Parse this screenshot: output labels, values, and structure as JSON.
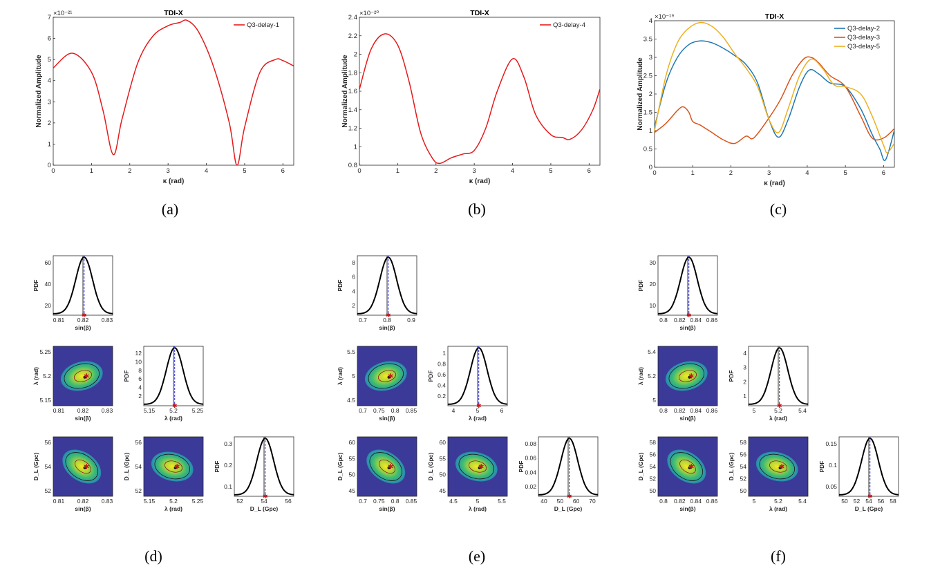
{
  "chart_data": [
    {
      "id": "a",
      "type": "line",
      "title": "TDI-X",
      "xlabel": "κ (rad)",
      "ylabel": "Normalized Amplitude",
      "exponent_label": "×10⁻²¹",
      "xlim": [
        0,
        6.2832
      ],
      "ylim": [
        0,
        7
      ],
      "xticks": [
        "0",
        "1",
        "2",
        "3",
        "4",
        "5",
        "6"
      ],
      "yticks": [
        "0",
        "1",
        "2",
        "3",
        "4",
        "5",
        "6",
        "7"
      ],
      "legend_position": "top-right",
      "series": [
        {
          "name": "Q3-delay-1",
          "color": "#e41a1c",
          "x": [
            0,
            0.5,
            1.0,
            1.3,
            1.57,
            1.8,
            2.2,
            2.6,
            3.0,
            3.3,
            3.5,
            3.8,
            4.2,
            4.6,
            4.8,
            5.0,
            5.4,
            5.8,
            6.0,
            6.28
          ],
          "y": [
            4.6,
            5.3,
            4.4,
            2.6,
            0.5,
            2.2,
            4.8,
            6.1,
            6.6,
            6.75,
            6.85,
            6.3,
            4.6,
            2.0,
            0.0,
            1.8,
            4.4,
            5.0,
            4.95,
            4.7
          ]
        }
      ]
    },
    {
      "id": "b",
      "type": "line",
      "title": "TDI-X",
      "xlabel": "κ (rad)",
      "ylabel": "Normalized Amplitude",
      "exponent_label": "×10⁻²⁰",
      "xlim": [
        0,
        6.2832
      ],
      "ylim": [
        0.8,
        2.4
      ],
      "xticks": [
        "0",
        "1",
        "2",
        "3",
        "4",
        "5",
        "6"
      ],
      "yticks": [
        "0.8",
        "1",
        "1.2",
        "1.4",
        "1.6",
        "1.8",
        "2",
        "2.2",
        "2.4"
      ],
      "legend_position": "top-right",
      "series": [
        {
          "name": "Q3-delay-4",
          "color": "#e41a1c",
          "x": [
            0,
            0.3,
            0.65,
            1.0,
            1.3,
            1.6,
            1.9,
            2.1,
            2.4,
            2.7,
            3.0,
            3.3,
            3.6,
            4.0,
            4.3,
            4.6,
            5.0,
            5.3,
            5.5,
            5.8,
            6.1,
            6.28
          ],
          "y": [
            1.62,
            2.05,
            2.22,
            2.1,
            1.7,
            1.15,
            0.88,
            0.82,
            0.88,
            0.92,
            0.96,
            1.2,
            1.6,
            1.95,
            1.75,
            1.35,
            1.13,
            1.1,
            1.08,
            1.18,
            1.4,
            1.62
          ]
        }
      ]
    },
    {
      "id": "c",
      "type": "line",
      "title": "TDI-X",
      "xlabel": "κ (rad)",
      "ylabel": "Normalized Amplitude",
      "exponent_label": "×10⁻¹⁹",
      "xlim": [
        0,
        6.2832
      ],
      "ylim": [
        0,
        4
      ],
      "xticks": [
        "0",
        "1",
        "2",
        "3",
        "4",
        "5",
        "6"
      ],
      "yticks": [
        "0",
        "0.5",
        "1",
        "1.5",
        "2",
        "2.5",
        "3",
        "3.5",
        "4"
      ],
      "legend_position": "top-right",
      "series": [
        {
          "name": "Q3-delay-2",
          "color": "#1f77b4",
          "x": [
            0,
            0.3,
            0.6,
            0.9,
            1.2,
            1.5,
            1.8,
            2.1,
            2.4,
            2.7,
            3.0,
            3.25,
            3.5,
            3.8,
            4.05,
            4.3,
            4.6,
            5.0,
            5.4,
            5.7,
            5.9,
            6.05,
            6.28
          ],
          "y": [
            1.1,
            2.3,
            3.0,
            3.35,
            3.45,
            3.4,
            3.25,
            3.05,
            2.8,
            2.3,
            1.3,
            0.82,
            1.3,
            2.2,
            2.65,
            2.55,
            2.3,
            2.2,
            1.6,
            0.9,
            0.5,
            0.2,
            1.0
          ]
        },
        {
          "name": "Q3-delay-3",
          "color": "#d95319",
          "x": [
            0,
            0.3,
            0.6,
            0.75,
            0.9,
            1.0,
            1.2,
            1.5,
            1.8,
            2.1,
            2.4,
            2.6,
            3.0,
            3.3,
            3.6,
            3.9,
            4.1,
            4.3,
            4.6,
            5.0,
            5.4,
            5.7,
            6.0,
            6.28
          ],
          "y": [
            0.95,
            1.2,
            1.55,
            1.65,
            1.5,
            1.25,
            1.15,
            0.95,
            0.75,
            0.65,
            0.85,
            0.8,
            1.35,
            1.85,
            2.5,
            2.95,
            3.0,
            2.85,
            2.5,
            2.2,
            1.4,
            0.8,
            0.8,
            1.05
          ]
        },
        {
          "name": "Q3-delay-5",
          "color": "#edb120",
          "x": [
            0,
            0.3,
            0.6,
            0.9,
            1.2,
            1.5,
            1.8,
            2.1,
            2.4,
            2.7,
            3.0,
            3.25,
            3.5,
            3.8,
            4.1,
            4.4,
            4.7,
            5.0,
            5.4,
            5.7,
            6.0,
            6.1,
            6.28
          ],
          "y": [
            1.0,
            2.5,
            3.4,
            3.8,
            3.95,
            3.85,
            3.55,
            3.1,
            2.7,
            2.2,
            1.3,
            0.95,
            1.6,
            2.5,
            2.95,
            2.7,
            2.25,
            2.2,
            2.0,
            1.4,
            0.6,
            0.4,
            0.65
          ]
        }
      ]
    }
  ],
  "corner_plots": [
    {
      "id": "d",
      "pdf_ylabel": "PDF",
      "param_labels": [
        "sin(β)",
        "λ (rad)",
        "D_L (Gpc)"
      ],
      "ticks": [
        [
          "0.81",
          "0.82",
          "0.83"
        ],
        [
          "5.15",
          "5.2",
          "5.25"
        ],
        [
          "52",
          "54",
          "56"
        ]
      ],
      "pdf_yticks": [
        [
          "20",
          "40",
          "60"
        ],
        [
          "2",
          "4",
          "6",
          "8",
          "10",
          "12"
        ],
        [
          "0.1",
          "0.2",
          "0.3"
        ]
      ]
    },
    {
      "id": "e",
      "pdf_ylabel": "PDF",
      "param_labels": [
        "sin(β)",
        "λ (rad)",
        "D_L (Gpc)"
      ],
      "ticks": [
        [
          "0.7",
          "0.75",
          "0.8",
          "0.85"
        ],
        [
          "4.5",
          "5",
          "5.5"
        ],
        [
          "45",
          "50",
          "55",
          "60"
        ]
      ],
      "ticks_lambda_1d": [
        "4",
        "5",
        "6"
      ],
      "ticks_sin_1d": [
        "0.7",
        "0.8",
        "0.9"
      ],
      "ticks_dl_1d": [
        "40",
        "50",
        "60",
        "70"
      ],
      "pdf_yticks": [
        [
          "2",
          "4",
          "6",
          "8"
        ],
        [
          "0.2",
          "0.4",
          "0.6",
          "0.8",
          "1"
        ],
        [
          "0.02",
          "0.04",
          "0.06",
          "0.08"
        ]
      ]
    },
    {
      "id": "f",
      "pdf_ylabel": "PDF",
      "param_labels": [
        "sin(β)",
        "λ (rad)",
        "D_L (Gpc)"
      ],
      "ticks": [
        [
          "0.8",
          "0.82",
          "0.84",
          "0.86"
        ],
        [
          "5",
          "5.2",
          "5.4"
        ],
        [
          "50",
          "52",
          "54",
          "56",
          "58"
        ]
      ],
      "pdf_yticks": [
        [
          "10",
          "20",
          "30"
        ],
        [
          "1",
          "2",
          "3",
          "4"
        ],
        [
          "0.05",
          "0.1",
          "0.15"
        ]
      ]
    }
  ],
  "captions": [
    "(a)",
    "(b)",
    "(c)",
    "(d)",
    "(e)",
    "(f)"
  ]
}
